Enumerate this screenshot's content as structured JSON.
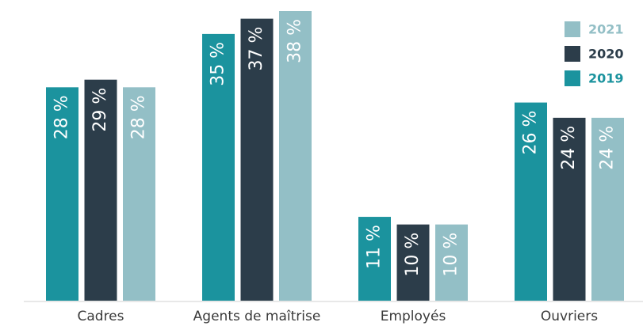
{
  "chart_data": {
    "type": "bar",
    "categories": [
      "Cadres",
      "Agents de maîtrise",
      "Employés",
      "Ouvriers"
    ],
    "series": [
      {
        "name": "2019",
        "color": "#1b939e",
        "values": [
          28,
          35,
          11,
          26
        ],
        "value_labels": [
          "28 %",
          "35 %",
          "11 %",
          "26 %"
        ]
      },
      {
        "name": "2020",
        "color": "#2c3d4a",
        "values": [
          29,
          37,
          10,
          24
        ],
        "value_labels": [
          "29 %",
          "37 %",
          "10 %",
          "24 %"
        ]
      },
      {
        "name": "2021",
        "color": "#93bfc6",
        "values": [
          28,
          38,
          10,
          24
        ],
        "value_labels": [
          "28 %",
          "38 %",
          "10 %",
          "24 %"
        ]
      }
    ],
    "legend": "top-right"
  }
}
